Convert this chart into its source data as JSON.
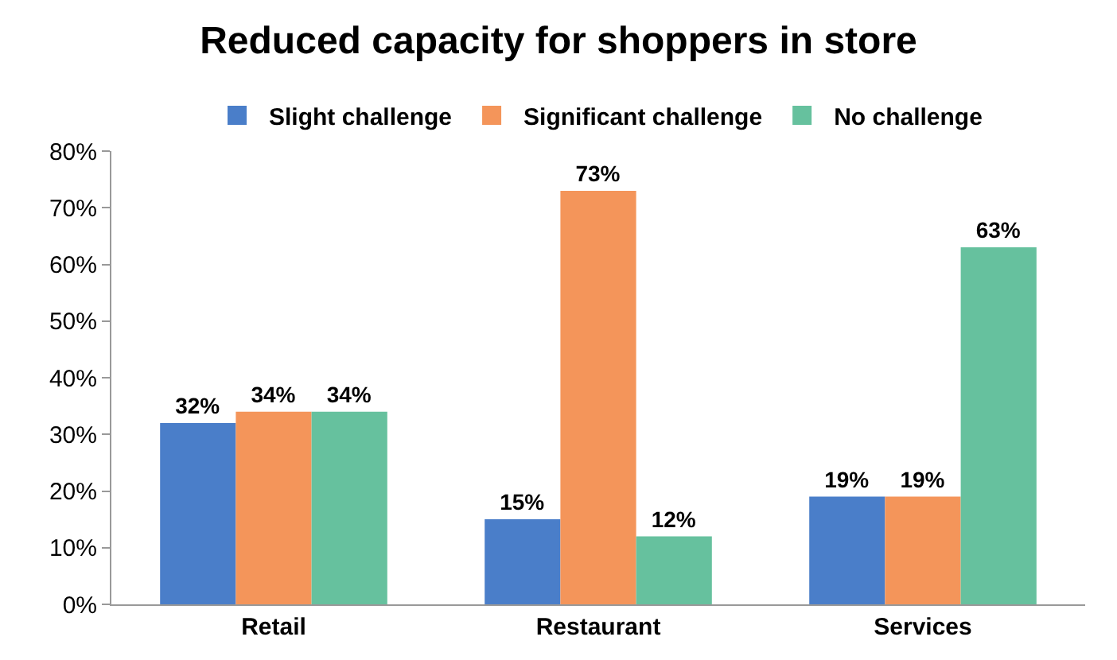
{
  "chart_data": {
    "type": "bar",
    "title": "Reduced capacity for shoppers in store",
    "categories": [
      "Retail",
      "Restaurant",
      "Services"
    ],
    "series": [
      {
        "name": "Slight challenge",
        "color": "#4a7ec9",
        "values": [
          32,
          15,
          19
        ],
        "value_labels": [
          "32%",
          "15%",
          "19%"
        ]
      },
      {
        "name": "Significant challenge",
        "color": "#f4955a",
        "values": [
          34,
          73,
          19
        ],
        "value_labels": [
          "34%",
          "73%",
          "19%"
        ]
      },
      {
        "name": "No challenge",
        "color": "#66c19e",
        "values": [
          34,
          12,
          63
        ],
        "value_labels": [
          "34%",
          "12%",
          "63%"
        ]
      }
    ],
    "ylim": [
      0,
      80
    ],
    "yticks": [
      {
        "value": 0,
        "label": "0%"
      },
      {
        "value": 10,
        "label": "10%"
      },
      {
        "value": 20,
        "label": "20%"
      },
      {
        "value": 30,
        "label": "30%"
      },
      {
        "value": 40,
        "label": "40%"
      },
      {
        "value": 50,
        "label": "50%"
      },
      {
        "value": 60,
        "label": "60%"
      },
      {
        "value": 70,
        "label": "70%"
      },
      {
        "value": 80,
        "label": "80%"
      }
    ],
    "legend": "top"
  }
}
